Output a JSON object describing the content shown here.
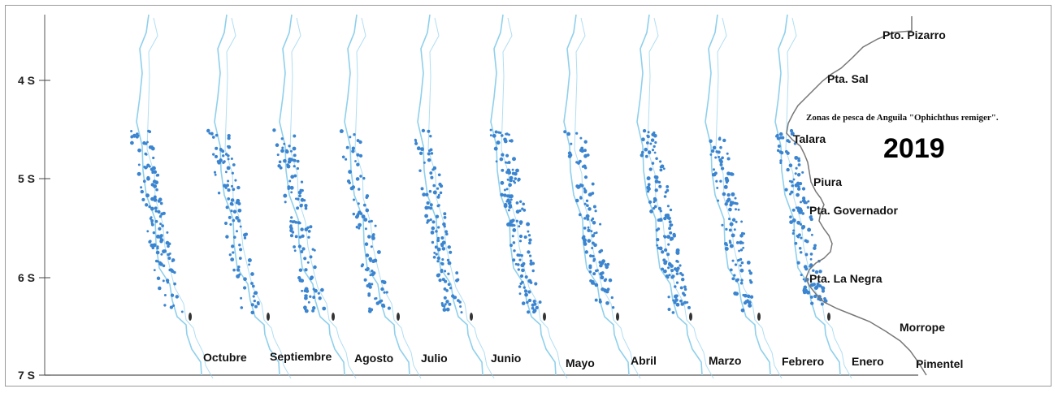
{
  "map": {
    "title": "Zonas de pesca de Anguila \"Ophichthus remiger\".",
    "year": "2019",
    "latitude_labels": [
      "4 S",
      "5 S",
      "6 S",
      "7 S"
    ],
    "places": [
      "Pto. Pizarro",
      "Pta. Sal",
      "Talara",
      "Piura",
      "Pta. Governador",
      "Pta. La Negra",
      "Morrope",
      "Pimentel"
    ],
    "months": [
      "Octubre",
      "Septiembre",
      "Agosto",
      "Julio",
      "Junio",
      "Mayo",
      "Abril",
      "Marzo",
      "Febrero",
      "Enero"
    ],
    "colors": {
      "points": "#3a84d0",
      "shelf_contour": "#8fd0ec",
      "coastline": "#777777",
      "frame": "#9a9a9a"
    }
  }
}
